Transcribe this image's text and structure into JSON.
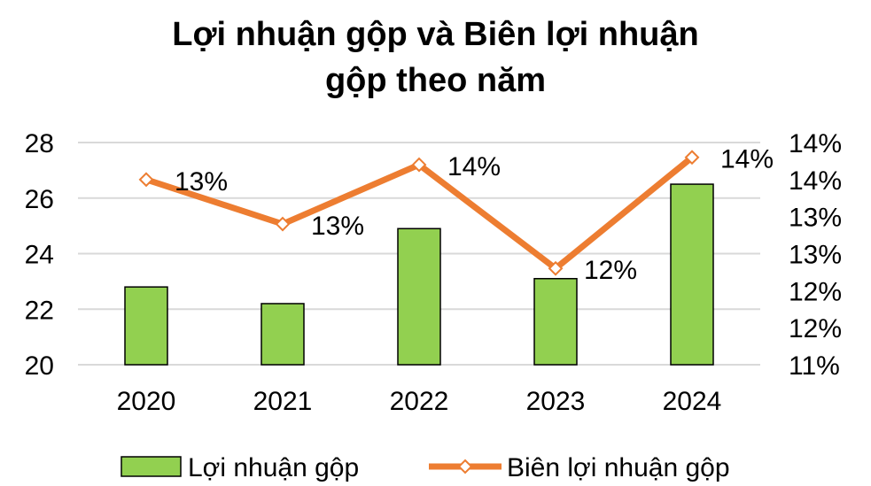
{
  "chart_data": {
    "type": "bar",
    "title_lines": [
      "Lợi nhuận gộp và Biên lợi nhuận",
      "gộp theo năm"
    ],
    "categories": [
      "2020",
      "2021",
      "2022",
      "2023",
      "2024"
    ],
    "y_left": {
      "ylim": [
        20,
        28
      ],
      "ticks": [
        "20",
        "22",
        "24",
        "26",
        "28"
      ]
    },
    "y_right": {
      "ylim": [
        11.0,
        14.0
      ],
      "ticks": [
        "11%",
        "12%",
        "12%",
        "13%",
        "13%",
        "14%",
        "14%"
      ]
    },
    "grid": true,
    "legend_position": "bottom",
    "series": [
      {
        "name": "Lợi nhuận gộp",
        "type": "bar",
        "axis": "left",
        "color": "#92d050",
        "values": [
          22.8,
          22.2,
          24.9,
          23.1,
          26.5
        ]
      },
      {
        "name": "Biên lợi nhuận gộp",
        "type": "line",
        "axis": "right",
        "color": "#ed7d31",
        "marker": "diamond",
        "values": [
          13.5,
          12.9,
          13.7,
          12.3,
          13.8
        ],
        "labels": [
          "13%",
          "13%",
          "14%",
          "12%",
          "14%"
        ]
      }
    ]
  }
}
